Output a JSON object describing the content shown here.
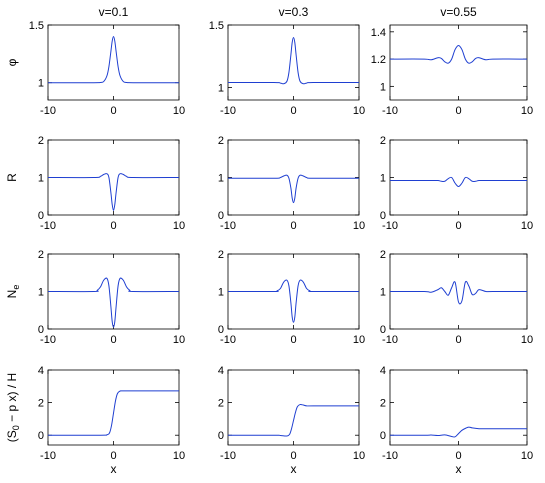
{
  "columns": [
    "v=0.1",
    "v=0.3",
    "v=0.55"
  ],
  "row_labels": [
    {
      "main": "φ",
      "sub": ""
    },
    {
      "main": "R",
      "sub": ""
    },
    {
      "main": "N",
      "sub": "e"
    },
    {
      "main": "(S",
      "sub": "0",
      "rest": " − p x) / H"
    }
  ],
  "xlabel": "x",
  "colors": {
    "line": "#1f3fd1",
    "axis": "#000000"
  },
  "chart_data": [
    {
      "type": "line",
      "row": 0,
      "col": 0,
      "xlim": [
        -10,
        10
      ],
      "ylim": [
        0.85,
        1.5
      ],
      "yticks": [
        1,
        1.5
      ],
      "ytick_labels": [
        "1",
        "1.5"
      ],
      "xticks": [
        -10,
        0,
        10
      ],
      "x": [
        -10,
        -3,
        -2,
        -1.5,
        -1,
        -0.7,
        -0.4,
        -0.2,
        0,
        0.2,
        0.4,
        0.7,
        1,
        1.5,
        2,
        3,
        10
      ],
      "y": [
        1.0,
        1.0,
        1.002,
        1.01,
        1.06,
        1.14,
        1.27,
        1.36,
        1.4,
        1.36,
        1.27,
        1.14,
        1.06,
        1.01,
        1.002,
        1.0,
        1.0
      ]
    },
    {
      "type": "line",
      "row": 0,
      "col": 1,
      "xlim": [
        -10,
        10
      ],
      "ylim": [
        0.9,
        1.5
      ],
      "yticks": [
        1,
        1.5
      ],
      "ytick_labels": [
        "1",
        "1.5"
      ],
      "xticks": [
        -10,
        0,
        10
      ],
      "x": [
        -10,
        -3,
        -2,
        -1.5,
        -1,
        -0.7,
        -0.4,
        -0.2,
        0,
        0.2,
        0.4,
        0.7,
        1,
        1.5,
        2,
        3,
        10
      ],
      "y": [
        1.04,
        1.04,
        1.035,
        1.03,
        1.05,
        1.12,
        1.26,
        1.36,
        1.4,
        1.36,
        1.26,
        1.12,
        1.05,
        1.03,
        1.035,
        1.04,
        1.04
      ]
    },
    {
      "type": "line",
      "row": 0,
      "col": 2,
      "xlim": [
        -10,
        10
      ],
      "ylim": [
        0.9,
        1.45
      ],
      "yticks": [
        1,
        1.2,
        1.4
      ],
      "ytick_labels": [
        "1",
        "1.2",
        "1.4"
      ],
      "xticks": [
        -10,
        0,
        10
      ],
      "x": [
        -10,
        -5,
        -4,
        -3,
        -2.5,
        -2,
        -1.5,
        -1,
        -0.5,
        0,
        0.5,
        1,
        1.5,
        2,
        2.5,
        3,
        4,
        5,
        10
      ],
      "y": [
        1.2,
        1.2,
        1.195,
        1.21,
        1.205,
        1.18,
        1.17,
        1.2,
        1.27,
        1.3,
        1.27,
        1.2,
        1.17,
        1.18,
        1.205,
        1.21,
        1.195,
        1.2,
        1.2
      ]
    },
    {
      "type": "line",
      "row": 1,
      "col": 0,
      "xlim": [
        -10,
        10
      ],
      "ylim": [
        0,
        2
      ],
      "yticks": [
        0,
        1,
        2
      ],
      "ytick_labels": [
        "0",
        "1",
        "2"
      ],
      "xticks": [
        -10,
        0,
        10
      ],
      "x": [
        -10,
        -3,
        -2,
        -1.5,
        -1,
        -0.7,
        -0.4,
        -0.2,
        0,
        0.2,
        0.4,
        0.7,
        1,
        1.5,
        2,
        3,
        10
      ],
      "y": [
        1.0,
        1.0,
        1.03,
        1.08,
        1.1,
        1.0,
        0.6,
        0.28,
        0.12,
        0.28,
        0.6,
        1.0,
        1.1,
        1.08,
        1.03,
        1.0,
        1.0
      ]
    },
    {
      "type": "line",
      "row": 1,
      "col": 1,
      "xlim": [
        -10,
        10
      ],
      "ylim": [
        0,
        2
      ],
      "yticks": [
        0,
        1,
        2
      ],
      "ytick_labels": [
        "0",
        "1",
        "2"
      ],
      "xticks": [
        -10,
        0,
        10
      ],
      "x": [
        -10,
        -3,
        -2,
        -1.5,
        -1,
        -0.7,
        -0.4,
        -0.2,
        0,
        0.2,
        0.4,
        0.7,
        1,
        1.5,
        2,
        3,
        10
      ],
      "y": [
        0.98,
        0.98,
        1.0,
        1.04,
        1.06,
        0.98,
        0.72,
        0.45,
        0.33,
        0.45,
        0.72,
        0.98,
        1.06,
        1.04,
        1.0,
        0.98,
        0.98
      ]
    },
    {
      "type": "line",
      "row": 1,
      "col": 2,
      "xlim": [
        -10,
        10
      ],
      "ylim": [
        0,
        2
      ],
      "yticks": [
        0,
        1,
        2
      ],
      "ytick_labels": [
        "0",
        "1",
        "2"
      ],
      "xticks": [
        -10,
        0,
        10
      ],
      "x": [
        -10,
        -4,
        -3,
        -2.5,
        -2,
        -1.5,
        -1,
        -0.5,
        0,
        0.5,
        1,
        1.5,
        2,
        2.5,
        3,
        4,
        10
      ],
      "y": [
        0.92,
        0.92,
        0.92,
        0.9,
        0.9,
        0.97,
        1.0,
        0.85,
        0.76,
        0.85,
        1.0,
        0.97,
        0.9,
        0.9,
        0.92,
        0.92,
        0.92
      ]
    },
    {
      "type": "line",
      "row": 2,
      "col": 0,
      "xlim": [
        -10,
        10
      ],
      "ylim": [
        0,
        2
      ],
      "yticks": [
        0,
        1,
        2
      ],
      "ytick_labels": [
        "0",
        "1",
        "2"
      ],
      "xticks": [
        -10,
        0,
        10
      ],
      "x": [
        -10,
        -3,
        -2.5,
        -2,
        -1.5,
        -1,
        -0.7,
        -0.4,
        -0.2,
        0,
        0.2,
        0.4,
        0.7,
        1,
        1.5,
        2,
        2.5,
        3,
        10
      ],
      "y": [
        1.0,
        1.0,
        1.03,
        1.12,
        1.3,
        1.35,
        1.15,
        0.6,
        0.2,
        0.05,
        0.2,
        0.6,
        1.15,
        1.35,
        1.3,
        1.12,
        1.03,
        1.0,
        1.0
      ]
    },
    {
      "type": "line",
      "row": 2,
      "col": 1,
      "xlim": [
        -10,
        10
      ],
      "ylim": [
        0,
        2
      ],
      "yticks": [
        0,
        1,
        2
      ],
      "ytick_labels": [
        "0",
        "1",
        "2"
      ],
      "xticks": [
        -10,
        0,
        10
      ],
      "x": [
        -10,
        -3,
        -2.5,
        -2,
        -1.5,
        -1,
        -0.7,
        -0.4,
        -0.2,
        0,
        0.2,
        0.4,
        0.7,
        1,
        1.5,
        2,
        2.5,
        3,
        10
      ],
      "y": [
        1.0,
        1.0,
        1.02,
        1.08,
        1.25,
        1.3,
        1.15,
        0.7,
        0.32,
        0.18,
        0.32,
        0.7,
        1.15,
        1.3,
        1.25,
        1.08,
        1.02,
        1.0,
        1.0
      ]
    },
    {
      "type": "line",
      "row": 2,
      "col": 2,
      "xlim": [
        -10,
        10
      ],
      "ylim": [
        0,
        2
      ],
      "yticks": [
        0,
        1,
        2
      ],
      "ytick_labels": [
        "0",
        "1",
        "2"
      ],
      "xticks": [
        -10,
        0,
        10
      ],
      "x": [
        -10,
        -5,
        -4,
        -3,
        -2.5,
        -2,
        -1.5,
        -1,
        -0.5,
        0,
        0.5,
        1,
        1.5,
        2,
        2.5,
        3,
        4,
        5,
        10
      ],
      "y": [
        1.0,
        1.0,
        0.98,
        1.05,
        1.1,
        1.0,
        0.9,
        1.1,
        1.25,
        0.72,
        0.75,
        1.25,
        1.15,
        0.92,
        0.95,
        1.05,
        1.0,
        1.0,
        1.0
      ]
    },
    {
      "type": "line",
      "row": 3,
      "col": 0,
      "xlim": [
        -10,
        10
      ],
      "ylim": [
        -0.6,
        4
      ],
      "yticks": [
        0,
        2,
        4
      ],
      "ytick_labels": [
        "0",
        "2",
        "4"
      ],
      "xticks": [
        -10,
        0,
        10
      ],
      "x": [
        -10,
        -2,
        -1,
        -0.6,
        -0.3,
        0,
        0.3,
        0.6,
        1,
        2,
        10
      ],
      "y": [
        0.0,
        0.0,
        0.03,
        0.15,
        0.6,
        1.35,
        2.1,
        2.55,
        2.7,
        2.72,
        2.72
      ]
    },
    {
      "type": "line",
      "row": 3,
      "col": 1,
      "xlim": [
        -10,
        10
      ],
      "ylim": [
        -0.6,
        4
      ],
      "yticks": [
        0,
        2,
        4
      ],
      "ytick_labels": [
        "0",
        "2",
        "4"
      ],
      "xticks": [
        -10,
        0,
        10
      ],
      "x": [
        -10,
        -3,
        -2,
        -1,
        -0.6,
        -0.3,
        0,
        0.3,
        0.6,
        1,
        1.5,
        2,
        3,
        10
      ],
      "y": [
        0.0,
        0.0,
        -0.02,
        -0.05,
        0.05,
        0.4,
        0.9,
        1.4,
        1.75,
        1.88,
        1.85,
        1.8,
        1.8,
        1.8
      ]
    },
    {
      "type": "line",
      "row": 3,
      "col": 2,
      "xlim": [
        -10,
        10
      ],
      "ylim": [
        -0.6,
        4
      ],
      "yticks": [
        0,
        2,
        4
      ],
      "ytick_labels": [
        "0",
        "2",
        "4"
      ],
      "xticks": [
        -10,
        0,
        10
      ],
      "x": [
        -10,
        -5,
        -4,
        -3,
        -2,
        -1,
        -0.5,
        0,
        0.5,
        1,
        1.5,
        2,
        3,
        4,
        10
      ],
      "y": [
        0.0,
        0.0,
        0.01,
        -0.02,
        0.02,
        -0.08,
        -0.1,
        0.1,
        0.3,
        0.42,
        0.5,
        0.45,
        0.4,
        0.4,
        0.4
      ]
    }
  ]
}
